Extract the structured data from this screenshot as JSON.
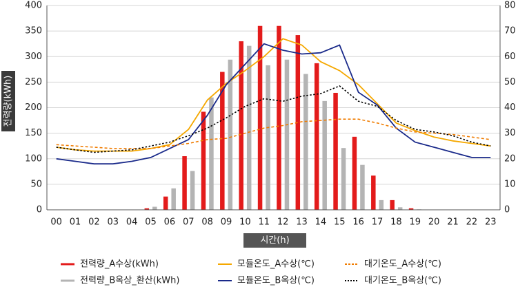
{
  "chart_data": {
    "type": "bar",
    "xlabel": "시간(h)",
    "ylabel": "전력량(kWh)",
    "categories": [
      "00",
      "01",
      "02",
      "03",
      "04",
      "05",
      "06",
      "07",
      "08",
      "09",
      "10",
      "11",
      "12",
      "13",
      "14",
      "15",
      "16",
      "17",
      "18",
      "19",
      "20",
      "21",
      "22",
      "23"
    ],
    "ylim": [
      0,
      400
    ],
    "y_ticks": [
      0,
      50,
      100,
      150,
      200,
      250,
      300,
      350,
      400
    ],
    "y2lim": [
      0,
      80
    ],
    "y2_ticks": [
      0,
      10,
      20,
      30,
      40,
      50,
      60,
      70,
      80
    ],
    "grid": "horizontal",
    "legend_position": "bottom",
    "bar_series": [
      {
        "name": "전력량_A수상(kWh)",
        "color": "#e31b1b",
        "values": [
          0,
          0,
          0,
          0,
          0,
          3,
          26,
          105,
          192,
          270,
          330,
          360,
          360,
          342,
          287,
          229,
          143,
          67,
          19,
          3,
          0,
          0,
          0,
          0
        ]
      },
      {
        "name": "전력량_B옥상_환산(kWh)",
        "color": "#b4b4b4",
        "values": [
          0,
          0,
          0,
          0,
          0,
          6,
          42,
          76,
          220,
          294,
          321,
          283,
          294,
          266,
          213,
          121,
          88,
          19,
          5,
          1,
          0,
          0,
          0,
          0
        ]
      }
    ],
    "line_series": [
      {
        "name": "모듈온도_A수상(℃)",
        "color": "#f5a800",
        "style": "solid",
        "axis": "right",
        "values": [
          24.5,
          23.5,
          23.0,
          23.0,
          23.0,
          24.0,
          25.5,
          31.5,
          43.0,
          49.5,
          54.5,
          60.0,
          67.0,
          64.5,
          58.0,
          54.5,
          49.0,
          41.5,
          34.0,
          31.0,
          28.5,
          27.0,
          26.0,
          25.0
        ]
      },
      {
        "name": "모듈온도_B옥상(℃)",
        "color": "#1a2a8a",
        "style": "solid",
        "axis": "right",
        "values": [
          20.0,
          19.0,
          18.0,
          18.0,
          19.0,
          20.5,
          24.0,
          27.5,
          37.0,
          49.0,
          57.0,
          65.0,
          62.5,
          61.0,
          61.5,
          64.5,
          46.0,
          41.0,
          32.0,
          26.5,
          24.5,
          22.5,
          20.5,
          20.5
        ]
      },
      {
        "name": "대기온도_A수상(℃)",
        "color": "#f07c00",
        "style": "dashed",
        "axis": "right",
        "values": [
          25.5,
          25.0,
          24.5,
          24.0,
          24.0,
          24.0,
          25.0,
          26.0,
          27.5,
          28.0,
          30.0,
          32.0,
          33.0,
          34.5,
          35.0,
          35.5,
          35.5,
          34.0,
          32.0,
          30.5,
          30.0,
          29.5,
          28.5,
          27.5
        ]
      },
      {
        "name": "대기온도_B옥상(℃)",
        "color": "#000000",
        "style": "dotted",
        "axis": "right",
        "values": [
          24.5,
          23.5,
          22.5,
          23.0,
          23.5,
          25.0,
          26.5,
          29.0,
          32.0,
          36.0,
          40.5,
          43.5,
          42.5,
          44.5,
          45.5,
          48.5,
          42.5,
          40.5,
          35.0,
          31.5,
          30.5,
          29.0,
          26.5,
          25.0
        ]
      }
    ]
  }
}
